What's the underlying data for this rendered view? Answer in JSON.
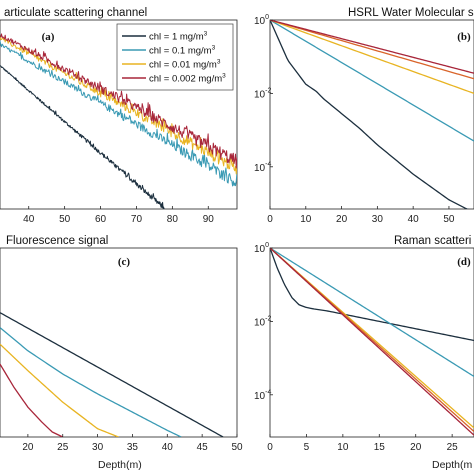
{
  "legend": {
    "entries": [
      {
        "label": "chl = 1 mg/m",
        "sup": "3",
        "color": "#1c2f3e"
      },
      {
        "label": "chl = 0.1 mg/m",
        "sup": "3",
        "color": "#3a9ab4"
      },
      {
        "label": "chl = 0.01 mg/m",
        "sup": "3",
        "color": "#e8b422"
      },
      {
        "label": "chl = 0.002 mg/m",
        "sup": "3",
        "color": "#a8263a"
      }
    ]
  },
  "chart_data": [
    {
      "type": "line",
      "title": "articulate scattering channel",
      "panel_label": "(a)",
      "xlabel": "",
      "xlim": [
        32,
        98
      ],
      "xticks": [
        40,
        50,
        60,
        70,
        80,
        90
      ],
      "ylim_log10": [
        -6,
        -0.2
      ],
      "series": [
        {
          "name": "chl = 1 mg/m3",
          "color": "#1c2f3e",
          "x": [
            32,
            78
          ],
          "log10_y": [
            -1.6,
            -6.0
          ],
          "noise": 0.08
        },
        {
          "name": "chl = 0.1 mg/m3",
          "color": "#3a9ab4",
          "x": [
            32,
            98
          ],
          "log10_y": [
            -0.95,
            -5.2
          ],
          "noise": 0.18
        },
        {
          "name": "chl = 0.01 mg/m3",
          "color": "#e8b422",
          "x": [
            32,
            98
          ],
          "log10_y": [
            -0.75,
            -4.75
          ],
          "noise": 0.2
        },
        {
          "name": "chl = 0.002 mg/m3",
          "color": "#a8263a",
          "x": [
            32,
            98
          ],
          "log10_y": [
            -0.65,
            -4.55
          ],
          "noise": 0.22
        }
      ]
    },
    {
      "type": "line",
      "title": "HSRL Water Molecular s",
      "panel_label": "(b)",
      "xlabel": "",
      "xlim": [
        0,
        57
      ],
      "xticks": [
        0,
        10,
        20,
        30,
        40,
        50
      ],
      "ylim_log10": [
        -5.15,
        0
      ],
      "yticks": [
        {
          "base": "10",
          "exp": "0",
          "value": 0
        },
        {
          "base": "10",
          "exp": "-2",
          "value": -2
        },
        {
          "base": "10",
          "exp": "-4",
          "value": -4
        }
      ],
      "series": [
        {
          "name": "chl = 1 mg/m3",
          "color": "#1c2f3e",
          "x": [
            0,
            5,
            10,
            13,
            15,
            20,
            25,
            30,
            35,
            40,
            45,
            50,
            55,
            57
          ],
          "log10_y": [
            0,
            -1.1,
            -1.75,
            -1.95,
            -2.15,
            -2.55,
            -2.95,
            -3.4,
            -3.8,
            -4.2,
            -4.55,
            -4.9,
            -5.15,
            -5.2
          ]
        },
        {
          "name": "chl = 0.1 mg/m3",
          "color": "#3a9ab4",
          "x": [
            0,
            57
          ],
          "log10_y": [
            0,
            -3.3
          ]
        },
        {
          "name": "chl = 0.01 mg/m3",
          "color": "#e8b422",
          "x": [
            0,
            57
          ],
          "log10_y": [
            0,
            -2.0
          ]
        },
        {
          "name": "chl = 0.002 mg/m3",
          "color": "#d9642a",
          "x": [
            0,
            57
          ],
          "log10_y": [
            0,
            -1.6
          ]
        },
        {
          "name": "",
          "color": "#a8263a",
          "x": [
            0,
            57
          ],
          "log10_y": [
            0,
            -1.45
          ]
        }
      ]
    },
    {
      "type": "line",
      "title": "Fluorescence signal",
      "panel_label": "(c)",
      "xlabel": "Depth(m)",
      "xlim": [
        16,
        50
      ],
      "xticks": [
        20,
        25,
        30,
        35,
        40,
        45,
        50
      ],
      "ylim_log10": [
        -6,
        -0.3
      ],
      "series": [
        {
          "name": "chl = 1 mg/m3",
          "color": "#1c2f3e",
          "x": [
            16,
            48
          ],
          "log10_y": [
            -2.25,
            -6.0
          ]
        },
        {
          "name": "chl = 0.1 mg/m3",
          "color": "#3a9ab4",
          "x": [
            16,
            20,
            25,
            30,
            35,
            40,
            42
          ],
          "log10_y": [
            -2.7,
            -3.4,
            -4.1,
            -4.7,
            -5.25,
            -5.8,
            -6.0
          ]
        },
        {
          "name": "chl = 0.01 mg/m3",
          "color": "#e8b422",
          "x": [
            16,
            20,
            25,
            30,
            33
          ],
          "log10_y": [
            -3.2,
            -4.0,
            -4.95,
            -5.75,
            -6.0
          ]
        },
        {
          "name": "chl = 0.002 mg/m3",
          "color": "#a8263a",
          "x": [
            16,
            18,
            20,
            22,
            23.5,
            25
          ],
          "log10_y": [
            -3.8,
            -4.5,
            -5.1,
            -5.55,
            -5.85,
            -6.0
          ]
        }
      ]
    },
    {
      "type": "line",
      "title": "Raman scatteri",
      "panel_label": "(d)",
      "xlabel": "Depth(m",
      "xlim": [
        0,
        28
      ],
      "xticks": [
        0,
        5,
        10,
        15,
        20,
        25
      ],
      "ylim_log10": [
        -5.15,
        0
      ],
      "yticks": [
        {
          "base": "10",
          "exp": "0",
          "value": 0
        },
        {
          "base": "10",
          "exp": "-2",
          "value": -2
        },
        {
          "base": "10",
          "exp": "-4",
          "value": -4
        }
      ],
      "series": [
        {
          "name": "chl = 1 mg/m3",
          "color": "#1c2f3e",
          "x": [
            0,
            1,
            2,
            3,
            4,
            5,
            6,
            8,
            10,
            15,
            20,
            25,
            28
          ],
          "log10_y": [
            0,
            -0.55,
            -1.0,
            -1.35,
            -1.55,
            -1.62,
            -1.66,
            -1.72,
            -1.8,
            -2.0,
            -2.2,
            -2.4,
            -2.52
          ]
        },
        {
          "name": "chl = 0.1 mg/m3",
          "color": "#3a9ab4",
          "x": [
            0,
            28
          ],
          "log10_y": [
            0,
            -3.5
          ]
        },
        {
          "name": "chl = 0.01 mg/m3",
          "color": "#e8b422",
          "x": [
            0,
            28
          ],
          "log10_y": [
            0,
            -4.9
          ]
        },
        {
          "name": "chl = 0.002 mg/m3",
          "color": "#d9642a",
          "x": [
            0,
            28
          ],
          "log10_y": [
            0,
            -5.0
          ]
        },
        {
          "name": "",
          "color": "#a8263a",
          "x": [
            0,
            28
          ],
          "log10_y": [
            0,
            -5.1
          ]
        }
      ]
    }
  ]
}
